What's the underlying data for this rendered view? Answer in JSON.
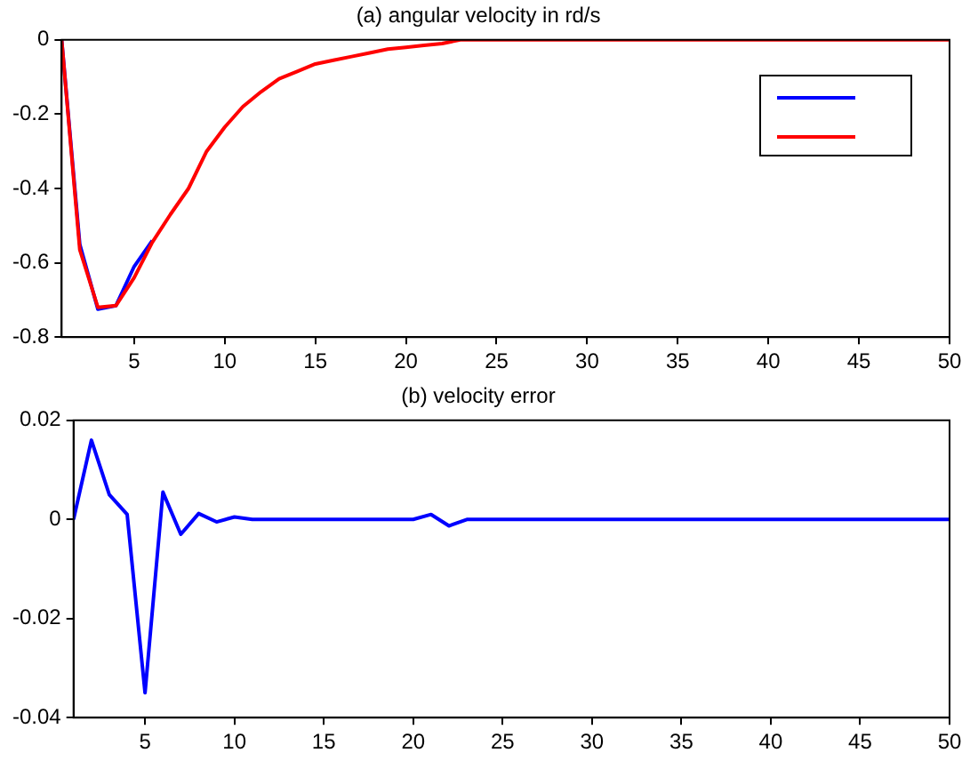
{
  "chart_data": [
    {
      "type": "line",
      "title": "(a) angular velocity in rd/s",
      "x": [
        1,
        2,
        3,
        4,
        5,
        6,
        7,
        8,
        9,
        10,
        11,
        12,
        13,
        14,
        15,
        16,
        17,
        18,
        19,
        20,
        21,
        22,
        23,
        24,
        25,
        26,
        27,
        28,
        29,
        30,
        31,
        32,
        33,
        34,
        35,
        36,
        37,
        38,
        39,
        40,
        41,
        42,
        43,
        44,
        45,
        46,
        47,
        48,
        49,
        50
      ],
      "series": [
        {
          "color": "#0000ff",
          "values": [
            0,
            -0.55,
            -0.725,
            -0.715,
            -0.61,
            -0.54,
            null,
            null,
            null,
            null,
            null,
            null,
            null,
            null,
            null,
            null,
            null,
            null,
            null,
            null,
            null,
            null,
            null,
            null,
            null,
            null,
            null,
            null,
            null,
            null,
            null,
            null,
            null,
            null,
            null,
            null,
            null,
            null,
            null,
            null,
            null,
            null,
            null,
            null,
            null,
            null,
            null,
            null,
            null,
            null
          ]
        },
        {
          "color": "#ff0000",
          "values": [
            0,
            -0.565,
            -0.72,
            -0.715,
            -0.64,
            -0.545,
            -0.47,
            -0.4,
            -0.3,
            -0.235,
            -0.18,
            -0.14,
            -0.105,
            -0.085,
            -0.065,
            -0.055,
            -0.045,
            -0.035,
            -0.025,
            -0.02,
            -0.015,
            -0.01,
            0,
            0,
            0,
            0,
            0,
            0,
            0,
            0,
            0,
            0,
            0,
            0,
            0,
            0,
            0,
            0,
            0,
            0,
            0,
            0,
            0,
            0,
            0,
            0,
            0,
            0,
            0,
            0
          ]
        }
      ],
      "xlim": [
        1,
        50
      ],
      "xticks": [
        5,
        10,
        15,
        20,
        25,
        30,
        35,
        40,
        45,
        50
      ],
      "ylim": [
        -0.8,
        0
      ],
      "yticks": [
        -0.8,
        -0.6,
        -0.4,
        -0.2,
        0
      ],
      "grid": false,
      "marker": "none",
      "line_style": "solid"
    },
    {
      "type": "line",
      "title": "(b) velocity error",
      "x": [
        1,
        2,
        3,
        4,
        5,
        6,
        7,
        8,
        9,
        10,
        11,
        12,
        13,
        14,
        15,
        16,
        17,
        18,
        19,
        20,
        21,
        22,
        23,
        24,
        25,
        26,
        27,
        28,
        29,
        30,
        31,
        32,
        33,
        34,
        35,
        36,
        37,
        38,
        39,
        40,
        41,
        42,
        43,
        44,
        45,
        46,
        47,
        48,
        49,
        50
      ],
      "series": [
        {
          "color": "#0000ff",
          "values": [
            0,
            0.016,
            0.005,
            0.001,
            -0.035,
            0.0055,
            -0.003,
            0.0012,
            -0.0005,
            0.0005,
            0,
            0,
            0,
            0,
            0,
            0,
            0,
            0,
            0,
            0,
            0.001,
            -0.0013,
            0,
            0,
            0,
            0,
            0,
            0,
            0,
            0,
            0,
            0,
            0,
            0,
            0,
            0,
            0,
            0,
            0,
            0,
            0,
            0,
            0,
            0,
            0,
            0,
            0,
            0,
            0,
            0
          ]
        }
      ],
      "xlim": [
        1,
        50
      ],
      "xticks": [
        5,
        10,
        15,
        20,
        25,
        30,
        35,
        40,
        45,
        50
      ],
      "ylim": [
        -0.04,
        0.02
      ],
      "yticks": [
        -0.04,
        -0.02,
        0,
        0.02
      ],
      "grid": false,
      "legend": false,
      "marker": "none",
      "line_style": "solid"
    }
  ]
}
